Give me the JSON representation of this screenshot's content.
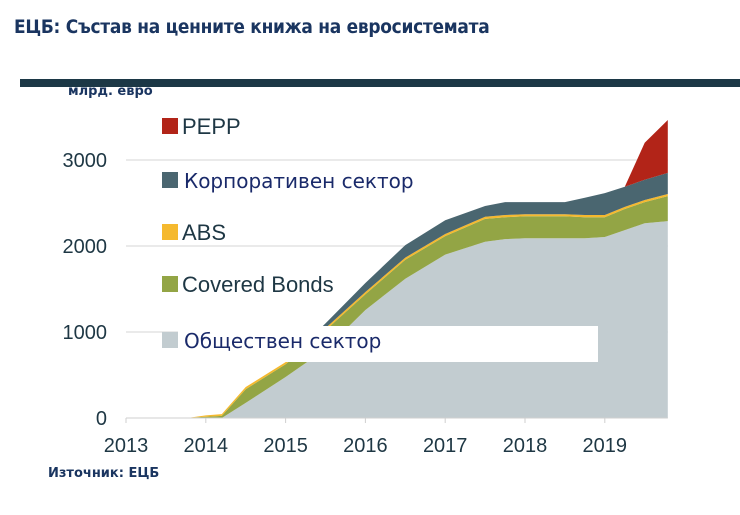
{
  "header": {
    "title": "ЕЦБ: Състав на ценните книжа на евросистемата"
  },
  "footer": {
    "source": "Източник: ЕЦБ"
  },
  "chart_data": {
    "type": "area",
    "stacked": true,
    "title": "",
    "ylabel": "млрд. евро",
    "xlabel": "",
    "xlim": [
      2013,
      2019.79
    ],
    "ylim": [
      0,
      3500
    ],
    "x_ticks": [
      "2013",
      "2014",
      "2015",
      "2016",
      "2017",
      "2018",
      "2019"
    ],
    "y_ticks": [
      "0",
      "1000",
      "2000",
      "3000"
    ],
    "grid": true,
    "legend_position": "left, inside plot",
    "x": [
      2013.8,
      2014.0,
      2014.2,
      2014.5,
      2015.0,
      2015.5,
      2016.0,
      2016.5,
      2017.0,
      2017.5,
      2017.75,
      2018.0,
      2018.5,
      2018.75,
      2019.0,
      2019.25,
      2019.5,
      2019.79
    ],
    "series": [
      {
        "name": "Обществен сектор",
        "color": "#c2ccd0",
        "values": [
          0,
          0,
          0,
          175,
          477,
          800,
          1256,
          1620,
          1900,
          2050,
          2080,
          2090,
          2090,
          2090,
          2105,
          2185,
          2265,
          2290
        ]
      },
      {
        "name": "Covered Bonds",
        "color": "#93a545",
        "values": [
          5,
          15,
          25,
          160,
          148,
          220,
          184,
          220,
          215,
          265,
          255,
          255,
          255,
          245,
          230,
          245,
          245,
          290
        ]
      },
      {
        "name": "ABS",
        "color": "#f5b92e",
        "values": [
          0,
          15,
          20,
          25,
          25,
          25,
          25,
          25,
          25,
          25,
          25,
          25,
          25,
          25,
          25,
          25,
          25,
          25
        ]
      },
      {
        "name": "Корпоративен сектор",
        "color": "#4a6670",
        "values": [
          0,
          0,
          0,
          0,
          0,
          55,
          105,
          145,
          160,
          125,
          150,
          140,
          140,
          200,
          255,
          235,
          235,
          245
        ]
      },
      {
        "name": "PEPP",
        "color": "#b22418",
        "values": [
          0,
          0,
          0,
          0,
          0,
          0,
          0,
          0,
          0,
          0,
          0,
          0,
          0,
          0,
          0,
          0,
          430,
          615
        ]
      }
    ]
  }
}
